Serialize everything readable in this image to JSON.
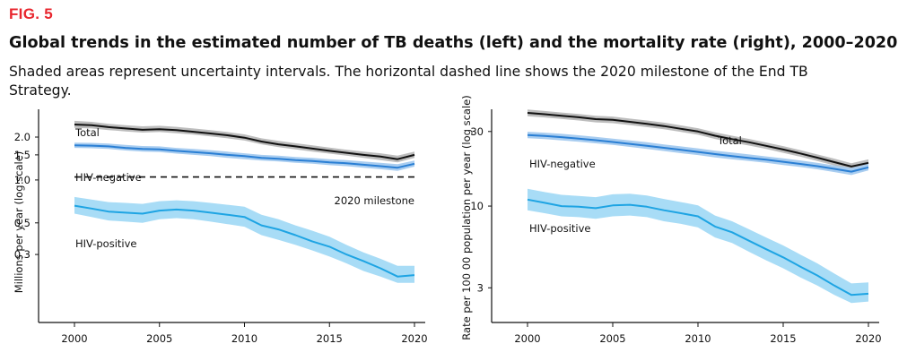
{
  "figure": {
    "label": "FIG. 5",
    "title": "Global trends in the estimated number of TB deaths (left) and the mortality rate (right), 2000–2020",
    "subtitle": "Shaded areas represent uncertainty intervals. The horizontal dashed line shows the 2020 milestone of the End TB Strategy."
  },
  "colors": {
    "accent": "#e8262e",
    "total_line": "#111111",
    "total_band": "#bdbdbd",
    "hivneg_line": "#2a7fd4",
    "hivneg_band": "#a9cdf0",
    "hivpos_line": "#1ea4e3",
    "hivpos_band": "#a8dcf6"
  },
  "chart_data": [
    {
      "type": "line",
      "scale": "log",
      "ylabel": "Millions per year (log scale)",
      "xlabel": "",
      "xlim": [
        2000,
        2020
      ],
      "ylim": [
        0.1,
        3.0
      ],
      "x_ticks": [
        2000,
        2005,
        2010,
        2015,
        2020
      ],
      "y_ticks": [
        {
          "value": 0.3,
          "label": "0.3"
        },
        {
          "value": 0.5,
          "label": "0.5"
        },
        {
          "value": 1.0,
          "label": "1.0"
        },
        {
          "value": 1.5,
          "label": "1.5"
        },
        {
          "value": 2.0,
          "label": "2.0"
        }
      ],
      "grid": false,
      "x": [
        2000,
        2001,
        2002,
        2003,
        2004,
        2005,
        2006,
        2007,
        2008,
        2009,
        2010,
        2011,
        2012,
        2013,
        2014,
        2015,
        2016,
        2017,
        2018,
        2019,
        2020
      ],
      "series": [
        {
          "name": "Total",
          "color_key": "total",
          "values": [
            2.45,
            2.42,
            2.35,
            2.3,
            2.25,
            2.27,
            2.24,
            2.18,
            2.12,
            2.06,
            1.98,
            1.86,
            1.78,
            1.72,
            1.66,
            1.6,
            1.55,
            1.5,
            1.46,
            1.4,
            1.5
          ],
          "lower": [
            2.32,
            2.3,
            2.24,
            2.19,
            2.15,
            2.17,
            2.13,
            2.08,
            2.02,
            1.96,
            1.89,
            1.78,
            1.7,
            1.64,
            1.58,
            1.53,
            1.48,
            1.43,
            1.38,
            1.33,
            1.43
          ],
          "upper": [
            2.6,
            2.56,
            2.48,
            2.42,
            2.38,
            2.4,
            2.36,
            2.3,
            2.24,
            2.17,
            2.09,
            1.96,
            1.88,
            1.81,
            1.75,
            1.69,
            1.63,
            1.58,
            1.54,
            1.48,
            1.58
          ]
        },
        {
          "name": "HIV-negative",
          "color_key": "hivneg",
          "values": [
            1.75,
            1.74,
            1.72,
            1.68,
            1.65,
            1.64,
            1.6,
            1.57,
            1.54,
            1.5,
            1.47,
            1.43,
            1.41,
            1.38,
            1.36,
            1.33,
            1.31,
            1.28,
            1.25,
            1.22,
            1.3
          ],
          "lower": [
            1.68,
            1.67,
            1.65,
            1.61,
            1.58,
            1.57,
            1.53,
            1.5,
            1.47,
            1.43,
            1.4,
            1.37,
            1.35,
            1.32,
            1.3,
            1.27,
            1.25,
            1.22,
            1.19,
            1.16,
            1.24
          ],
          "upper": [
            1.83,
            1.82,
            1.8,
            1.76,
            1.73,
            1.72,
            1.68,
            1.65,
            1.62,
            1.58,
            1.54,
            1.5,
            1.48,
            1.45,
            1.43,
            1.4,
            1.38,
            1.35,
            1.32,
            1.29,
            1.37
          ]
        },
        {
          "name": "HIV-positive",
          "color_key": "hivpos",
          "values": [
            0.66,
            0.63,
            0.6,
            0.59,
            0.58,
            0.61,
            0.62,
            0.61,
            0.59,
            0.57,
            0.55,
            0.48,
            0.45,
            0.41,
            0.37,
            0.34,
            0.3,
            0.27,
            0.24,
            0.21,
            0.215
          ],
          "lower": [
            0.58,
            0.55,
            0.52,
            0.51,
            0.5,
            0.53,
            0.54,
            0.53,
            0.51,
            0.49,
            0.47,
            0.41,
            0.38,
            0.35,
            0.32,
            0.29,
            0.26,
            0.23,
            0.21,
            0.19,
            0.19
          ],
          "upper": [
            0.76,
            0.73,
            0.7,
            0.69,
            0.68,
            0.71,
            0.72,
            0.71,
            0.69,
            0.67,
            0.65,
            0.57,
            0.53,
            0.48,
            0.44,
            0.4,
            0.35,
            0.31,
            0.28,
            0.25,
            0.25
          ]
        }
      ],
      "reference_line": {
        "value": 1.05,
        "label": "2020 milestone",
        "style": "dashed"
      },
      "series_labels": {
        "total": "Total",
        "hivneg": "HIV-negative",
        "hivpos": "HIV-positive"
      }
    },
    {
      "type": "line",
      "scale": "log",
      "ylabel": "Rate per 100 00 population per year (log scale)",
      "xlabel": "",
      "xlim": [
        2000,
        2020
      ],
      "ylim": [
        1.8,
        40
      ],
      "x_ticks": [
        2000,
        2005,
        2010,
        2015,
        2020
      ],
      "y_ticks": [
        {
          "value": 3,
          "label": "3"
        },
        {
          "value": 10,
          "label": "10"
        },
        {
          "value": 30,
          "label": "30"
        }
      ],
      "grid": false,
      "x": [
        2000,
        2001,
        2002,
        2003,
        2004,
        2005,
        2006,
        2007,
        2008,
        2009,
        2010,
        2011,
        2012,
        2013,
        2014,
        2015,
        2016,
        2017,
        2018,
        2019,
        2020
      ],
      "series": [
        {
          "name": "Total",
          "color_key": "total",
          "values": [
            39.5,
            38.7,
            37.8,
            37.0,
            36.0,
            35.6,
            34.6,
            33.6,
            32.5,
            31.2,
            30.0,
            28.2,
            26.8,
            25.6,
            24.3,
            23.0,
            21.7,
            20.4,
            19.1,
            17.9,
            18.9
          ],
          "lower": [
            37.6,
            36.9,
            36.1,
            35.3,
            34.3,
            33.9,
            33.0,
            32.0,
            31.0,
            29.8,
            28.6,
            26.9,
            25.5,
            24.4,
            23.2,
            21.9,
            20.7,
            19.4,
            18.2,
            17.0,
            18.0
          ],
          "upper": [
            41.5,
            40.6,
            39.7,
            38.8,
            37.8,
            37.4,
            36.3,
            35.3,
            34.2,
            32.8,
            31.5,
            29.6,
            28.2,
            26.9,
            25.5,
            24.2,
            22.8,
            21.4,
            20.1,
            18.8,
            19.9
          ]
        },
        {
          "name": "HIV-negative",
          "color_key": "hivneg",
          "values": [
            28.5,
            28.1,
            27.6,
            27.0,
            26.4,
            25.7,
            25.0,
            24.3,
            23.6,
            22.9,
            22.2,
            21.5,
            20.9,
            20.3,
            19.8,
            19.2,
            18.6,
            18.0,
            17.3,
            16.6,
            17.7
          ],
          "lower": [
            27.2,
            26.8,
            26.3,
            25.8,
            25.2,
            24.6,
            23.9,
            23.2,
            22.5,
            21.8,
            21.2,
            20.5,
            19.9,
            19.4,
            18.9,
            18.3,
            17.8,
            17.2,
            16.5,
            15.8,
            16.9
          ],
          "upper": [
            29.9,
            29.5,
            29.0,
            28.4,
            27.7,
            27.0,
            26.3,
            25.6,
            24.8,
            24.1,
            23.4,
            22.6,
            22.0,
            21.4,
            20.8,
            20.2,
            19.6,
            18.9,
            18.2,
            17.5,
            18.6
          ]
        },
        {
          "name": "HIV-positive",
          "color_key": "hivpos",
          "values": [
            11.0,
            10.5,
            10.0,
            9.9,
            9.7,
            10.1,
            10.2,
            9.9,
            9.4,
            9.0,
            8.6,
            7.4,
            6.8,
            6.0,
            5.3,
            4.7,
            4.1,
            3.6,
            3.1,
            2.7,
            2.75
          ],
          "lower": [
            9.4,
            9.0,
            8.6,
            8.5,
            8.3,
            8.6,
            8.7,
            8.5,
            8.0,
            7.7,
            7.3,
            6.3,
            5.8,
            5.1,
            4.5,
            4.0,
            3.5,
            3.1,
            2.7,
            2.4,
            2.45
          ],
          "upper": [
            12.9,
            12.3,
            11.8,
            11.6,
            11.4,
            11.9,
            12.0,
            11.7,
            11.1,
            10.6,
            10.1,
            8.7,
            8.0,
            7.1,
            6.3,
            5.6,
            4.9,
            4.3,
            3.7,
            3.2,
            3.25
          ]
        }
      ],
      "series_labels": {
        "total": "Total",
        "hivneg": "HIV-negative",
        "hivpos": "HIV-positive"
      }
    }
  ]
}
